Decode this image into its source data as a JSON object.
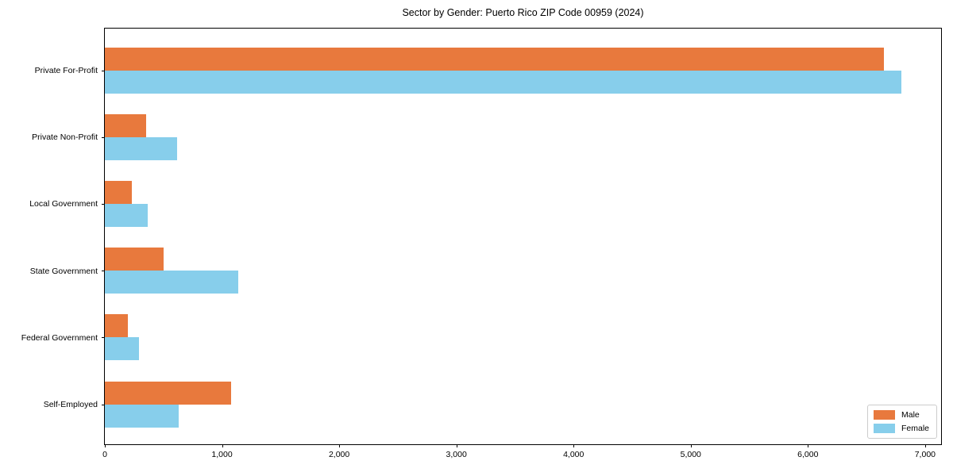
{
  "title": "Sector by Gender: Puerto Rico ZIP Code 00959 (2024)",
  "colors": {
    "male": "#E8793D",
    "female": "#87CEEB",
    "axis": "#000000",
    "legend_border": "#cccccc",
    "background": "#ffffff"
  },
  "chart_data": {
    "type": "bar",
    "orientation": "horizontal",
    "title": "Sector by Gender: Puerto Rico ZIP Code 00959 (2024)",
    "xlabel": "",
    "ylabel": "",
    "categories": [
      "Private For-Profit",
      "Private Non-Profit",
      "Local Government",
      "State Government",
      "Federal Government",
      "Self-Employed"
    ],
    "series": [
      {
        "name": "Male",
        "color": "#E8793D",
        "values": [
          6650,
          350,
          230,
          500,
          195,
          1080
        ]
      },
      {
        "name": "Female",
        "color": "#87CEEB",
        "values": [
          6800,
          620,
          365,
          1140,
          290,
          630
        ]
      }
    ],
    "xlim": [
      0,
      7150
    ],
    "x_tick_values": [
      0,
      1000,
      2000,
      3000,
      4000,
      5000,
      6000,
      7000
    ],
    "x_tick_labels": [
      "0",
      "1,000",
      "2,000",
      "3,000",
      "4,000",
      "5,000",
      "6,000",
      "7,000"
    ],
    "grid": false,
    "legend_position": "lower right"
  },
  "legend": {
    "items": [
      {
        "label": "Male"
      },
      {
        "label": "Female"
      }
    ]
  }
}
